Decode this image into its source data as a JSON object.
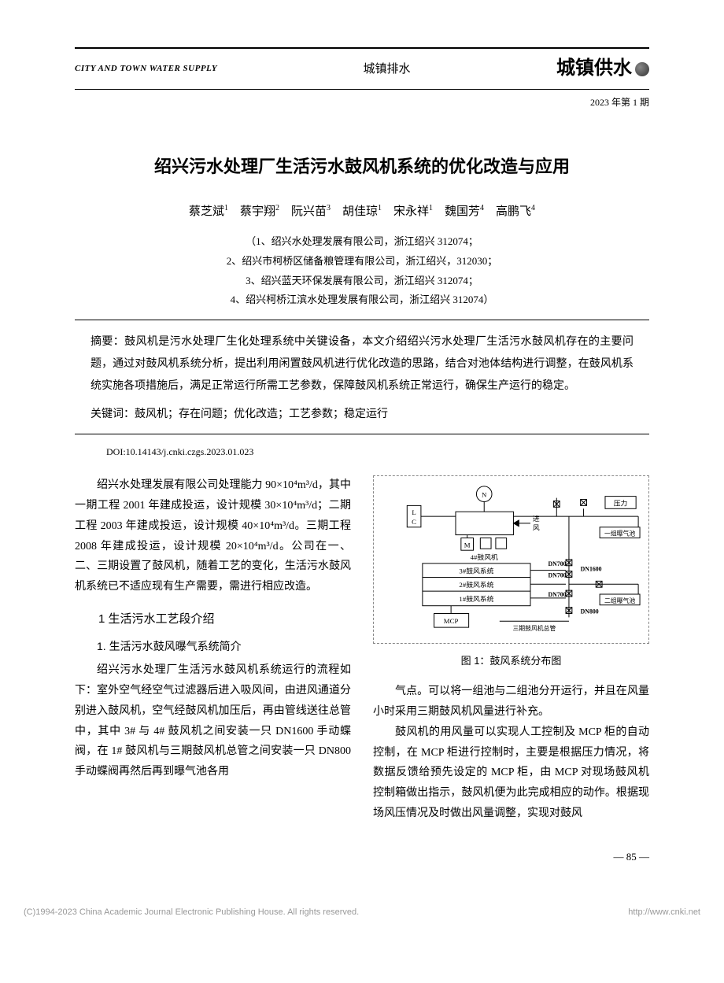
{
  "header": {
    "journal_en": "CITY AND TOWN WATER SUPPLY",
    "section": "城镇排水",
    "journal_cn": "城镇供水",
    "issue": "2023 年第 1 期"
  },
  "title": "绍兴污水处理厂生活污水鼓风机系统的优化改造与应用",
  "authors": [
    {
      "name": "蔡芝斌",
      "aff": "1"
    },
    {
      "name": "蔡宇翔",
      "aff": "2"
    },
    {
      "name": "阮兴苗",
      "aff": "3"
    },
    {
      "name": "胡佳琼",
      "aff": "1"
    },
    {
      "name": "宋永祥",
      "aff": "1"
    },
    {
      "name": "魏国芳",
      "aff": "4"
    },
    {
      "name": "高鹏飞",
      "aff": "4"
    }
  ],
  "affiliations": [
    "（1、绍兴水处理发展有限公司，浙江绍兴  312074；",
    "2、绍兴市柯桥区储备粮管理有限公司，浙江绍兴，312030；",
    "3、绍兴蓝天环保发展有限公司，浙江绍兴  312074；",
    "4、绍兴柯桥江滨水处理发展有限公司，浙江绍兴  312074）"
  ],
  "abstract_label": "摘要：",
  "abstract": "鼓风机是污水处理厂生化处理系统中关键设备，本文介绍绍兴污水处理厂生活污水鼓风机存在的主要问题，通过对鼓风机系统分析，提出利用闲置鼓风机进行优化改造的思路，结合对池体结构进行调整，在鼓风机系统实施各项措施后，满足正常运行所需工艺参数，保障鼓风机系统正常运行，确保生产运行的稳定。",
  "keywords_label": "关键词：",
  "keywords": "鼓风机；存在问题；优化改造；工艺参数；稳定运行",
  "doi": "DOI:10.14143/j.cnki.czgs.2023.01.023",
  "body": {
    "intro": "绍兴水处理发展有限公司处理能力 90×10⁴m³/d，其中一期工程 2001 年建成投运，设计规模 30×10⁴m³/d；二期工程 2003 年建成投运，设计规模 40×10⁴m³/d。三期工程 2008 年建成投运，设计规模 20×10⁴m³/d。公司在一、二、三期设置了鼓风机，随着工艺的变化，生活污水鼓风机系统已不适应现有生产需要，需进行相应改造。",
    "h1": "1 生活污水工艺段介绍",
    "h1_1": "1. 生活污水鼓风曝气系统简介",
    "p1": "绍兴污水处理厂生活污水鼓风机系统运行的流程如下：室外空气经空气过滤器后进入吸风间，由进风通道分别进入鼓风机，空气经鼓风机加压后，再由管线送往总管中，其中 3# 与 4# 鼓风机之间安装一只 DN1600 手动蝶阀，在 1# 鼓风机与三期鼓风机总管之间安装一只 DN800 手动蝶阀再然后再到曝气池各用",
    "p2": "气点。可以将一组池与二组池分开运行，并且在风量小时采用三期鼓风机风量进行补充。",
    "p3": "鼓风机的用风量可以实现人工控制及 MCP 柜的自动控制，在 MCP 柜进行控制时，主要是根据压力情况，将数据反馈给预先设定的 MCP 柜，由 MCP 对现场鼓风机控制箱做出指示，鼓风机便为此完成相应的动作。根据现场风压情况及时做出风量调整，实现对鼓风"
  },
  "figure": {
    "caption": "图 1：鼓风系统分布图",
    "labels": {
      "n": "N",
      "lc": "L\nC",
      "m": "M",
      "jinfeng": "进风",
      "fan4": "4#鼓风机",
      "sys3": "3#鼓风系统",
      "sys2": "2#鼓风系统",
      "sys1": "1#鼓风系统",
      "mcp": "MCP",
      "dn700": "DN700",
      "dn1600": "DN1600",
      "dn800": "DN800",
      "main3": "三期鼓风机总管",
      "yali": "压力",
      "pool1": "一组曝气池",
      "pool2": "二组曝气池"
    },
    "colors": {
      "line": "#000000",
      "text": "#000000",
      "bg": "#ffffff"
    },
    "fontsize": 9
  },
  "page_number": "— 85 —",
  "footer": {
    "left": "(C)1994-2023 China Academic Journal Electronic Publishing House. All rights reserved.",
    "right": "http://www.cnki.net"
  }
}
